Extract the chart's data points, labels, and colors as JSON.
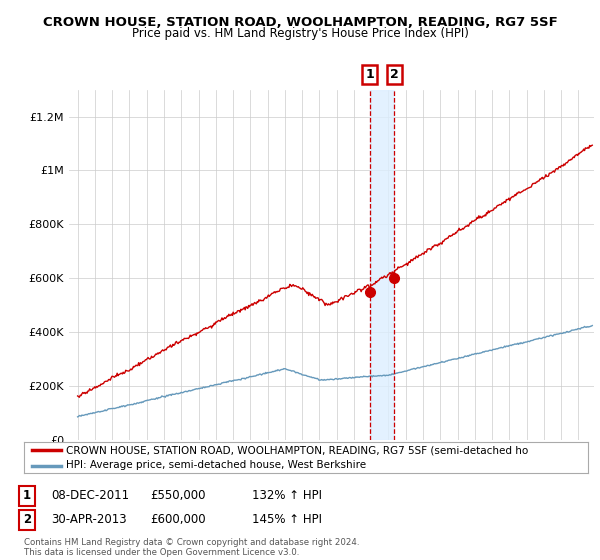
{
  "title1": "CROWN HOUSE, STATION ROAD, WOOLHAMPTON, READING, RG7 5SF",
  "title2": "Price paid vs. HM Land Registry's House Price Index (HPI)",
  "ylabel_ticks": [
    "£0",
    "£200K",
    "£400K",
    "£600K",
    "£800K",
    "£1M",
    "£1.2M"
  ],
  "ylabel_vals": [
    0,
    200000,
    400000,
    600000,
    800000,
    1000000,
    1200000
  ],
  "ylim": [
    0,
    1300000
  ],
  "legend_line1": "CROWN HOUSE, STATION ROAD, WOOLHAMPTON, READING, RG7 5SF (semi-detached ho",
  "legend_line2": "HPI: Average price, semi-detached house, West Berkshire",
  "annotation1_price": 550000,
  "annotation1_year": 2011.92,
  "annotation1_label": "1",
  "annotation1_text_date": "08-DEC-2011",
  "annotation1_text_price": "£550,000",
  "annotation1_text_hpi": "132% ↑ HPI",
  "annotation2_price": 600000,
  "annotation2_year": 2013.33,
  "annotation2_label": "2",
  "annotation2_text_date": "30-APR-2013",
  "annotation2_text_price": "£600,000",
  "annotation2_text_hpi": "145% ↑ HPI",
  "footer": "Contains HM Land Registry data © Crown copyright and database right 2024.\nThis data is licensed under the Open Government Licence v3.0.",
  "red_color": "#cc0000",
  "hpi_color": "#6699bb",
  "shading_color": "#ddeeff",
  "background_color": "#ffffff",
  "grid_color": "#cccccc",
  "xlim_left": 1994.5,
  "xlim_right": 2024.9,
  "xtick_start": 1995,
  "xtick_end": 2024
}
